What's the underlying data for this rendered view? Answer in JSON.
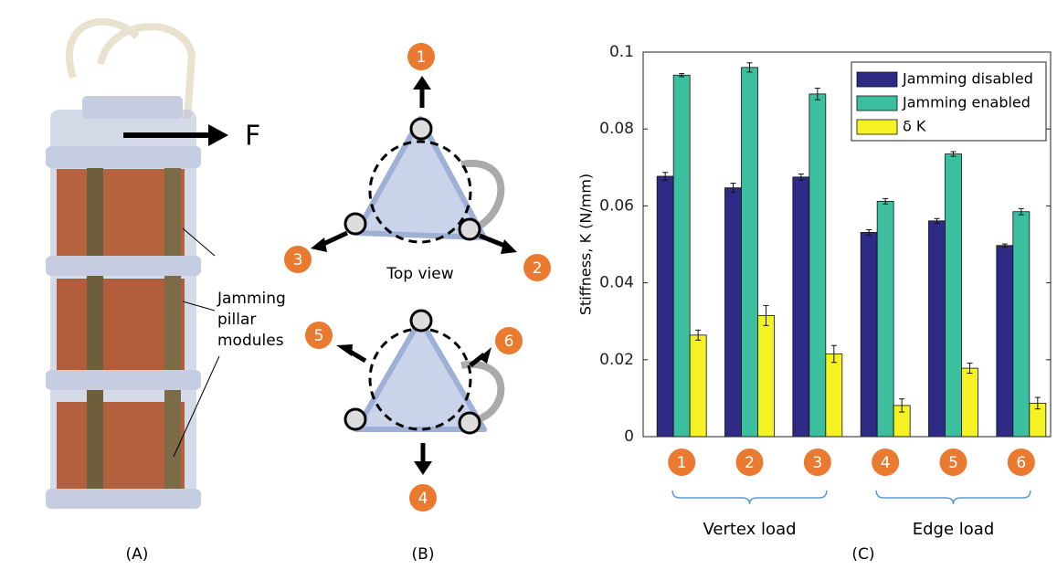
{
  "panels": {
    "a": {
      "label": "(A)",
      "force": "F",
      "annotation": [
        "Jamming",
        "pillar",
        "modules"
      ]
    },
    "b": {
      "label": "(B)",
      "caption": "Top view",
      "directions": [
        "1",
        "2",
        "3",
        "4",
        "5",
        "6"
      ]
    },
    "c": {
      "label": "(C)"
    }
  },
  "chart_data": {
    "type": "bar",
    "ylabel": "Stiffness, K (N/mm)",
    "categories": [
      "1",
      "2",
      "3",
      "4",
      "5",
      "6"
    ],
    "groups": [
      "Vertex load",
      "Edge load"
    ],
    "series": [
      {
        "name": "Jamming disabled",
        "color": "#2f2a85",
        "values": [
          0.0677,
          0.0647,
          0.0675,
          0.0531,
          0.0561,
          0.0497
        ],
        "errors": [
          0.001,
          0.0012,
          0.0008,
          0.0007,
          0.0006,
          0.0004
        ]
      },
      {
        "name": "Jamming enabled",
        "color": "#3cbf9e",
        "values": [
          0.094,
          0.096,
          0.0891,
          0.0612,
          0.0735,
          0.0585
        ],
        "errors": [
          0.0004,
          0.0012,
          0.0015,
          0.0007,
          0.0006,
          0.0008
        ]
      },
      {
        "name": "δ K",
        "color": "#f4f222",
        "values": [
          0.0264,
          0.0315,
          0.0215,
          0.0081,
          0.0178,
          0.0087
        ],
        "errors": [
          0.0013,
          0.0026,
          0.0022,
          0.0017,
          0.0013,
          0.0015
        ]
      }
    ],
    "ylim": [
      0,
      0.1
    ],
    "yticks": [
      0,
      0.02,
      0.04,
      0.06,
      0.08,
      0.1
    ],
    "legend": "upper right",
    "grid": false
  }
}
